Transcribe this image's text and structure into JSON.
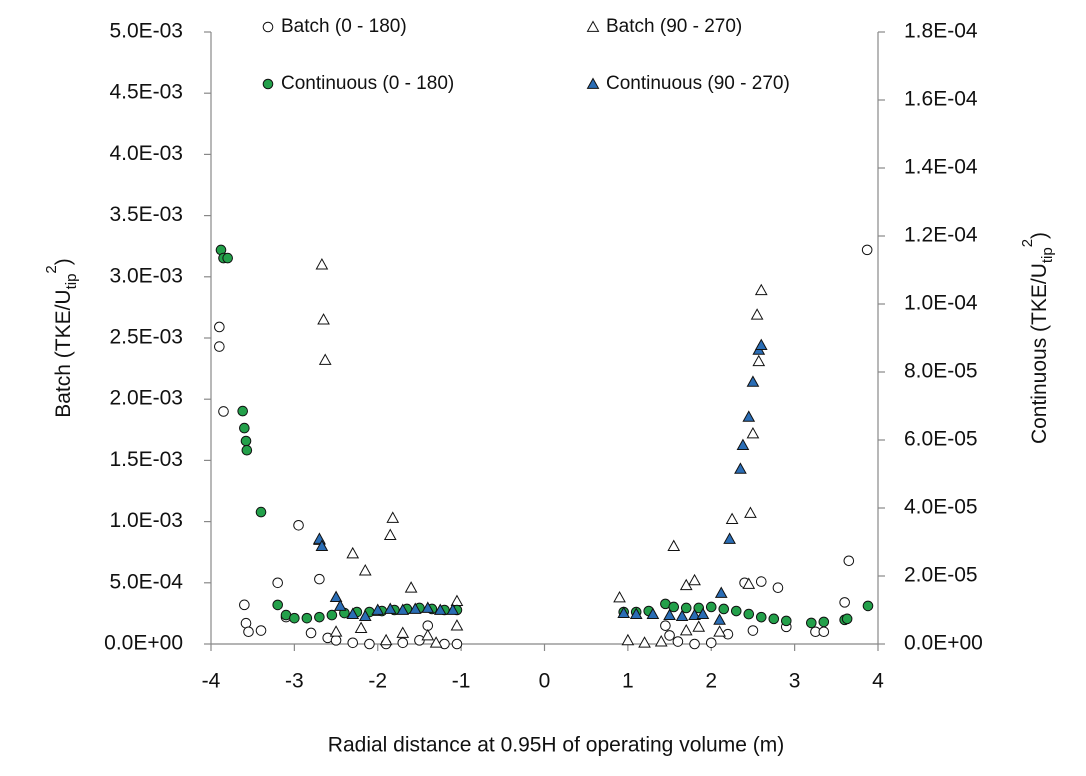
{
  "chart_data": {
    "type": "scatter",
    "x_label": "Radial distance at 0.95H of operating volume (m)",
    "y_label": [
      "Batch (TKE/U",
      "tip",
      "2",
      ")"
    ],
    "y2_label": [
      "Continuous (TKE/U",
      "tip",
      "2",
      ")"
    ],
    "xlim": [
      -4,
      4
    ],
    "xticks": [
      -4,
      -3,
      -2,
      -1,
      0,
      1,
      2,
      3,
      4
    ],
    "ylim": [
      0,
      0.005
    ],
    "yticks": [
      {
        "value": 0,
        "label": "0.0E+00"
      },
      {
        "value": 0.0005,
        "label": "5.0E-04"
      },
      {
        "value": 0.001,
        "label": "1.0E-03"
      },
      {
        "value": 0.0015,
        "label": "1.5E-03"
      },
      {
        "value": 0.002,
        "label": "2.0E-03"
      },
      {
        "value": 0.0025,
        "label": "2.5E-03"
      },
      {
        "value": 0.003,
        "label": "3.0E-03"
      },
      {
        "value": 0.0035,
        "label": "3.5E-03"
      },
      {
        "value": 0.004,
        "label": "4.0E-03"
      },
      {
        "value": 0.0045,
        "label": "4.5E-03"
      },
      {
        "value": 0.005,
        "label": "5.0E-03"
      }
    ],
    "y2lim": [
      0,
      0.00018
    ],
    "y2ticks": [
      {
        "value": 0,
        "label": "0.0E+00"
      },
      {
        "value": 2e-05,
        "label": "2.0E-05"
      },
      {
        "value": 4e-05,
        "label": "4.0E-05"
      },
      {
        "value": 6e-05,
        "label": "6.0E-05"
      },
      {
        "value": 8e-05,
        "label": "8.0E-05"
      },
      {
        "value": 0.0001,
        "label": "1.0E-04"
      },
      {
        "value": 0.00012,
        "label": "1.2E-04"
      },
      {
        "value": 0.00014,
        "label": "1.4E-04"
      },
      {
        "value": 0.00016,
        "label": "1.6E-04"
      },
      {
        "value": 0.00018,
        "label": "1.8E-04"
      }
    ],
    "series": [
      {
        "name": "Batch (0 - 180)",
        "marker": "circle",
        "color": "#ffffff",
        "axis": "y",
        "x": [
          -3.9,
          -3.9,
          -3.85,
          -3.6,
          -3.58,
          -3.55,
          -3.4,
          -3.2,
          -3.1,
          -2.95,
          -2.8,
          -2.7,
          -2.6,
          -2.5,
          -2.3,
          -2.1,
          -1.9,
          -1.7,
          -1.5,
          -1.4,
          -1.2,
          -1.05,
          1.45,
          1.5,
          1.6,
          1.8,
          2.0,
          2.2,
          2.4,
          2.5,
          2.6,
          2.8,
          2.9,
          3.25,
          3.35,
          3.6,
          3.65,
          3.87
        ],
        "values": [
          0.00259,
          0.00243,
          0.0019,
          0.00032,
          0.00017,
          0.0001,
          0.00011,
          0.0005,
          0.00022,
          0.00097,
          9e-05,
          0.00053,
          5e-05,
          3e-05,
          1e-05,
          0,
          0,
          1e-05,
          3e-05,
          0.00015,
          0,
          0,
          0.00015,
          7e-05,
          2e-05,
          0,
          1e-05,
          8e-05,
          0.0005,
          0.00011,
          0.00051,
          0.00046,
          0.00014,
          0.0001,
          0.0001,
          0.00034,
          0.00068,
          0.00322
        ]
      },
      {
        "name": "Batch (90 - 270)",
        "marker": "triangle",
        "color": "#ffffff",
        "axis": "y",
        "x": [
          -2.67,
          -2.65,
          -2.63,
          -2.7,
          -2.3,
          -2.15,
          -2.0,
          -1.85,
          -1.82,
          -1.6,
          -1.7,
          -2.5,
          -2.2,
          -1.4,
          -1.05,
          -1.05,
          -1.3,
          -1.9,
          0.9,
          1.0,
          1.2,
          1.4,
          1.55,
          1.7,
          1.8,
          1.7,
          1.85,
          2.1,
          2.25,
          2.45,
          2.47,
          2.5,
          2.55,
          2.6,
          2.57
        ],
        "values": [
          0.0031,
          0.00265,
          0.00232,
          0.00085,
          0.00074,
          0.0006,
          0.00027,
          0.00089,
          0.00103,
          0.00046,
          9e-05,
          0.0001,
          0.00013,
          7e-05,
          0.00035,
          0.00015,
          1e-05,
          3e-05,
          0.00038,
          3e-05,
          1e-05,
          2e-05,
          0.0008,
          0.00048,
          0.00052,
          0.00011,
          0.00014,
          0.0001,
          0.00102,
          0.00049,
          0.00107,
          0.00172,
          0.00269,
          0.00289,
          0.00231
        ]
      },
      {
        "name": "Continuous (0 - 180)",
        "marker": "circle",
        "color": "#23a04a",
        "axis": "y2",
        "x": [
          -3.88,
          -3.85,
          -3.8,
          -3.62,
          -3.6,
          -3.58,
          -3.57,
          -3.4,
          -3.2,
          -3.1,
          -3.0,
          -2.85,
          -2.7,
          -2.55,
          -2.4,
          -2.25,
          -2.1,
          -1.95,
          -1.8,
          -1.65,
          -1.5,
          -1.35,
          -1.2,
          -1.05,
          0.95,
          1.1,
          1.25,
          1.45,
          1.55,
          1.7,
          1.85,
          2.0,
          2.15,
          2.3,
          2.45,
          2.6,
          2.75,
          2.9,
          3.2,
          3.35,
          3.6,
          3.63,
          3.88
        ],
        "values": [
          0.0001159,
          0.0001135,
          0.0001135,
          6.85e-05,
          6.35e-05,
          5.97e-05,
          5.7e-05,
          3.88e-05,
          1.15e-05,
          8.5e-06,
          7.6e-06,
          7.6e-06,
          7.9e-06,
          8.5e-06,
          9.1e-06,
          9.4e-06,
          9.4e-06,
          9.7e-06,
          1e-05,
          1.03e-05,
          1.06e-05,
          1.03e-05,
          1e-05,
          1e-05,
          9.4e-06,
          9.4e-06,
          9.7e-06,
          1.18e-05,
          1.09e-05,
          1.06e-05,
          1.06e-05,
          1.09e-05,
          1.03e-05,
          9.7e-06,
          8.8e-06,
          7.9e-06,
          7.4e-06,
          6.8e-06,
          6.2e-06,
          6.5e-06,
          7.1e-06,
          7.4e-06,
          1.12e-05
        ]
      },
      {
        "name": "Continuous (90 - 270)",
        "marker": "triangle",
        "color": "#2a6db5",
        "axis": "y2",
        "x": [
          -2.7,
          -2.67,
          -2.5,
          -2.45,
          -2.3,
          -2.15,
          -2.0,
          -1.85,
          -1.7,
          -1.55,
          -1.4,
          -1.25,
          -1.1,
          0.95,
          1.1,
          1.3,
          1.5,
          1.65,
          1.8,
          1.9,
          2.1,
          2.12,
          2.22,
          2.35,
          2.38,
          2.45,
          2.5,
          2.57,
          2.6
        ],
        "values": [
          3.09e-05,
          2.88e-05,
          1.38e-05,
          1.12e-05,
          8.8e-06,
          8.2e-06,
          1e-05,
          1.03e-05,
          1e-05,
          1.03e-05,
          1.06e-05,
          1e-05,
          1e-05,
          9.1e-06,
          8.8e-06,
          8.8e-06,
          8.5e-06,
          8.2e-06,
          8.5e-06,
          8.8e-06,
          7.1e-06,
          1.5e-05,
          3.09e-05,
          5.15e-05,
          5.85e-05,
          6.68e-05,
          7.71e-05,
          8.65e-05,
          8.79e-05
        ]
      }
    ],
    "legend": "top"
  }
}
